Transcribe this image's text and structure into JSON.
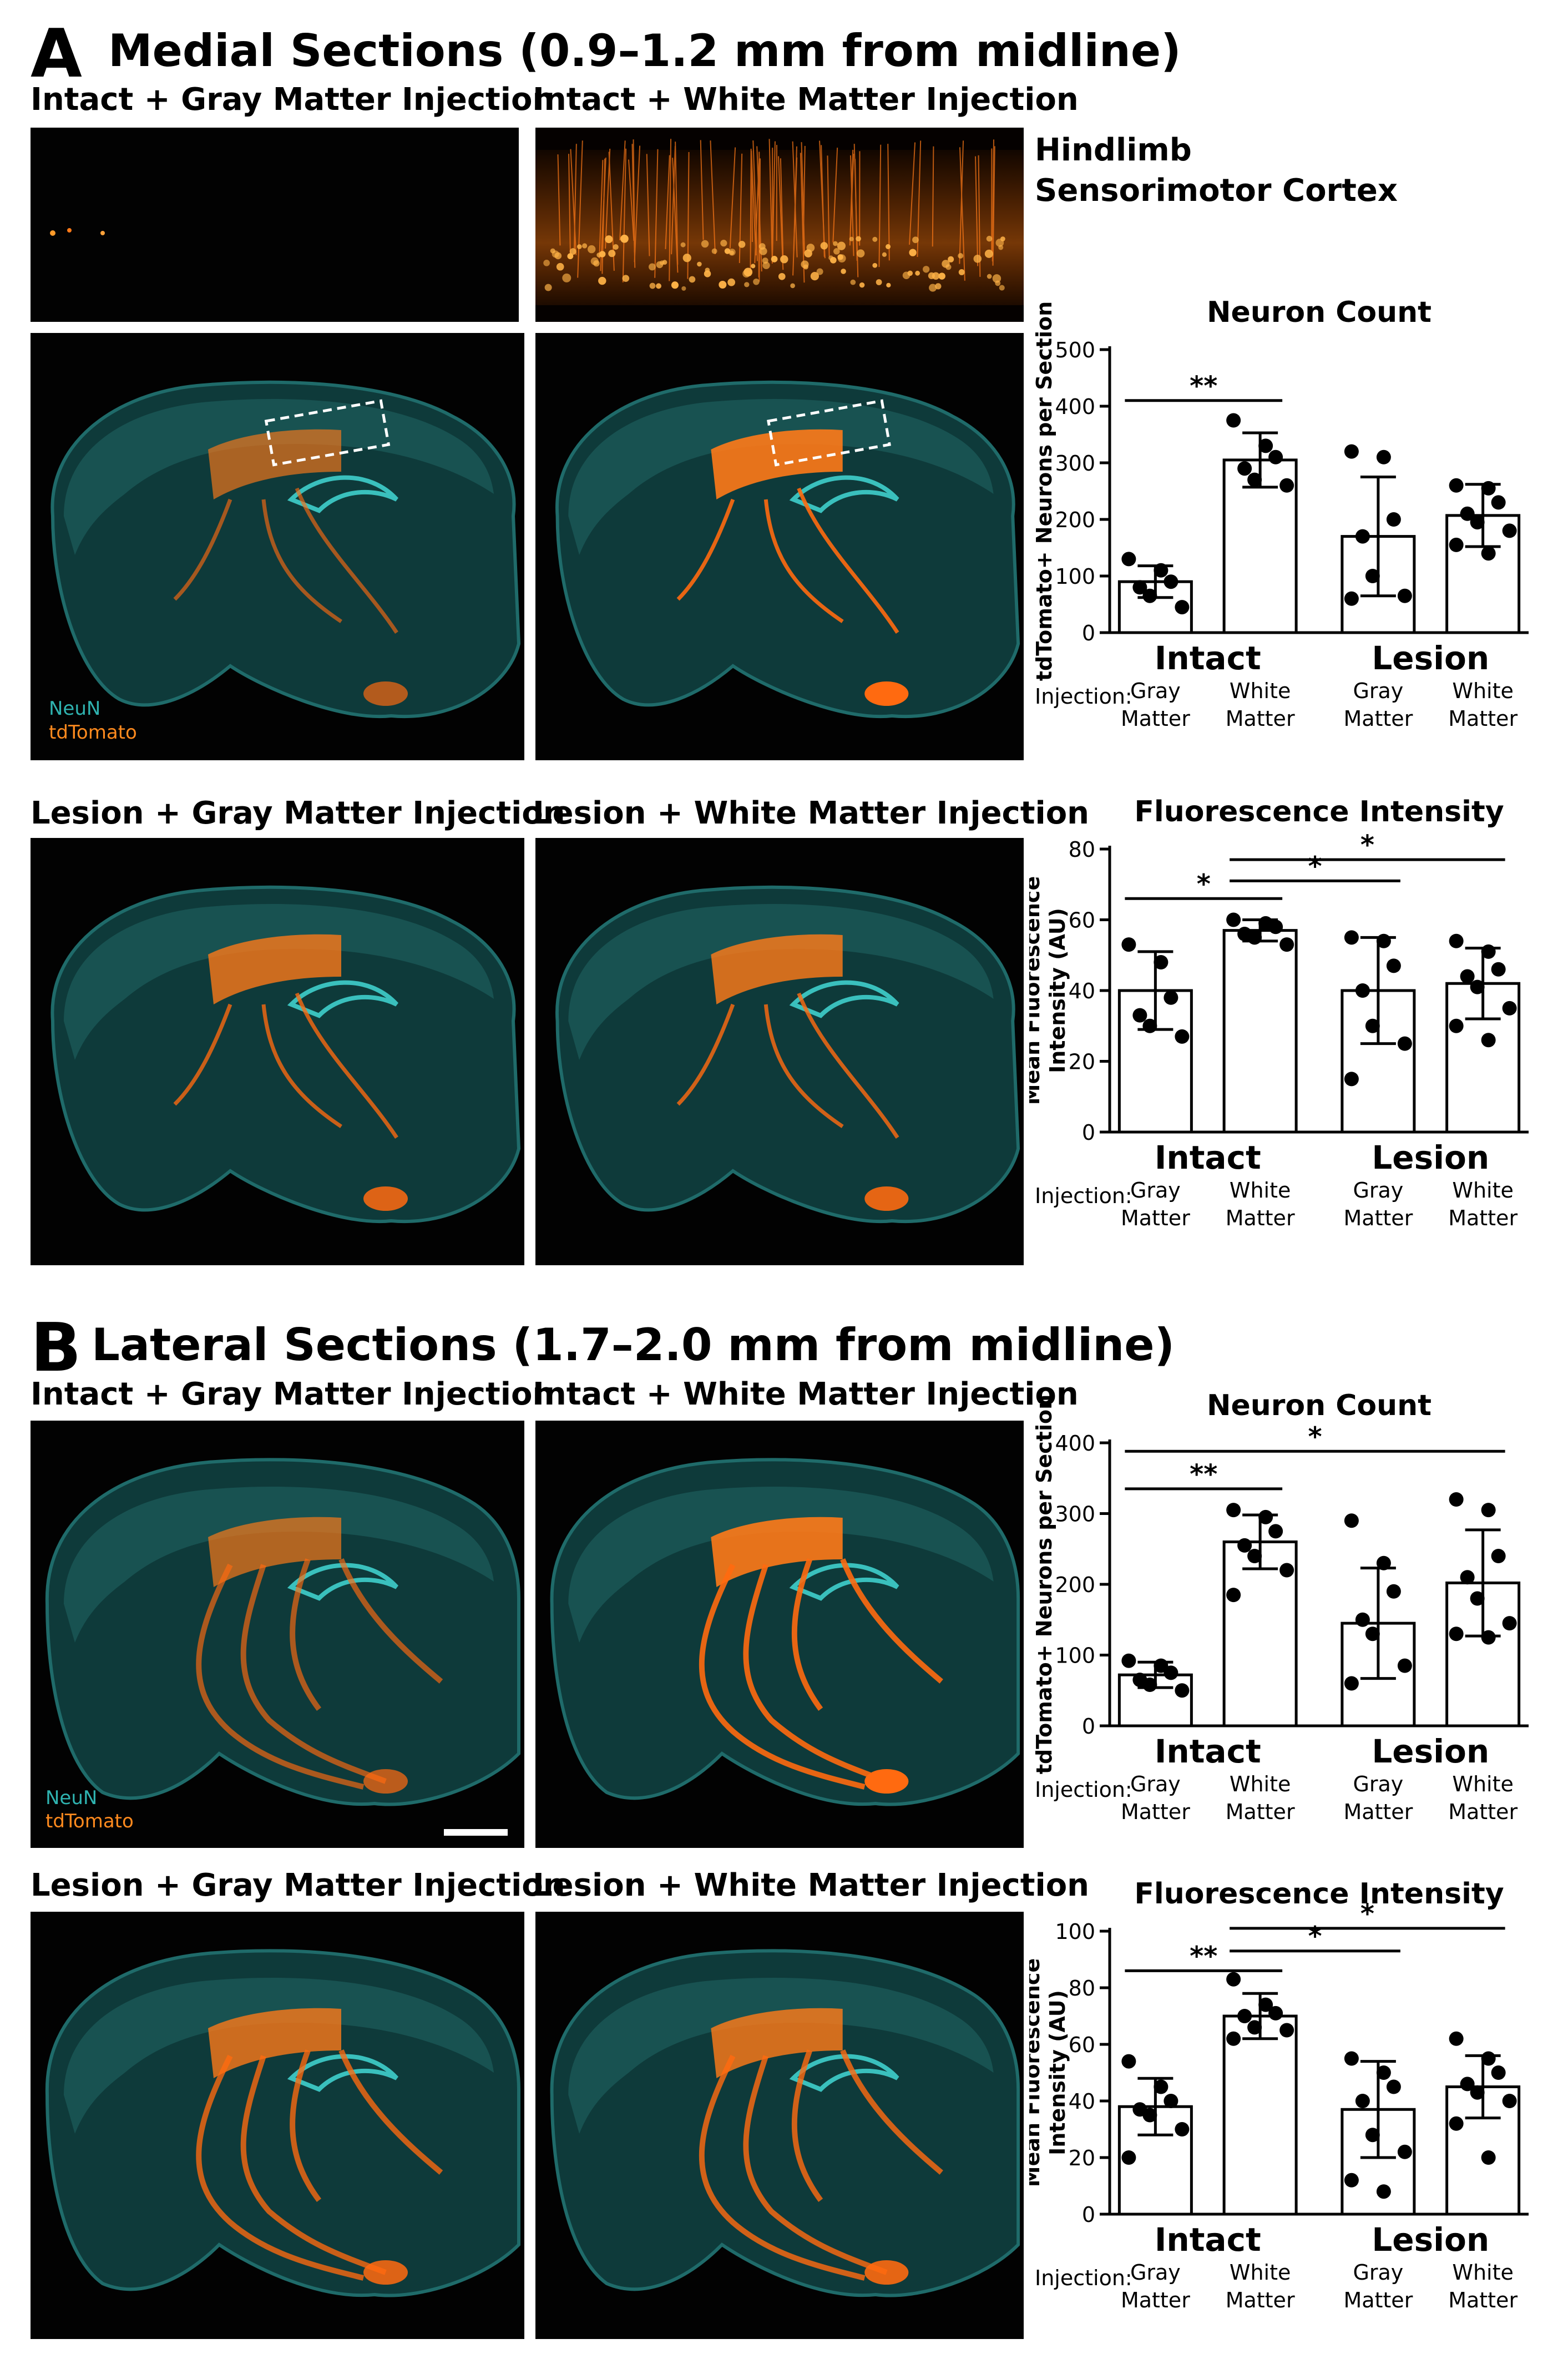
{
  "panel_a": {
    "letter": "A",
    "title": "Medial Sections (0.9–1.2 mm from midline)",
    "image_labels": {
      "intact_gray": "Intact + Gray Matter Injection",
      "intact_white": "Intact + White Matter Injection",
      "lesion_gray": "Lesion + Gray Matter Injection",
      "lesion_white": "Lesion + White Matter Injection"
    },
    "inset_label_line1": "Hindlimb",
    "inset_label_line2": "Sensorimotor Cortex",
    "stain_neun": "NeuN",
    "stain_tdtomato": "tdTomato"
  },
  "panel_b": {
    "letter": "B",
    "title": "Lateral Sections (1.7–2.0 mm from midline)",
    "image_labels": {
      "intact_gray": "Intact + Gray Matter Injection",
      "intact_white": "Intact + White Matter Injection",
      "lesion_gray": "Lesion + Gray Matter Injection",
      "lesion_white": "Lesion + White Matter Injection"
    },
    "stain_neun": "NeuN",
    "stain_tdtomato": "tdTomato"
  },
  "colors": {
    "neun": "#2fb3b0",
    "tdtomato": "#ff8a1e",
    "background": "#020202"
  },
  "chart_data": [
    {
      "id": "a-neuron-count",
      "type": "bar",
      "title": "Neuron Count",
      "ylabel": "tdTomato+ Neurons per Section",
      "ylim": [
        0,
        500
      ],
      "yticks": [
        0,
        100,
        200,
        300,
        400,
        500
      ],
      "groups": [
        "Intact",
        "Lesion"
      ],
      "injection_label": "Injection:",
      "categories": [
        "Gray Matter",
        "White Matter",
        "Gray Matter",
        "White Matter"
      ],
      "values": [
        90,
        305,
        170,
        207
      ],
      "sd": [
        28,
        48,
        105,
        55
      ],
      "points": [
        [
          130,
          110,
          90,
          80,
          65,
          45
        ],
        [
          375,
          330,
          310,
          290,
          270,
          260
        ],
        [
          320,
          310,
          200,
          170,
          100,
          65,
          60
        ],
        [
          260,
          255,
          230,
          210,
          195,
          180,
          155,
          140
        ]
      ],
      "significance": [
        {
          "from": 0,
          "to": 1,
          "label": "**",
          "y": 410
        }
      ]
    },
    {
      "id": "a-fluorescence",
      "type": "bar",
      "title": "Fluorescence Intensity",
      "ylabel": "Mean Fluorescence Intensity (AU)",
      "ylim": [
        0,
        80
      ],
      "yticks": [
        0,
        20,
        40,
        60,
        80
      ],
      "groups": [
        "Intact",
        "Lesion"
      ],
      "injection_label": "Injection:",
      "categories": [
        "Gray Matter",
        "White Matter",
        "Gray Matter",
        "White Matter"
      ],
      "values": [
        40,
        57,
        40,
        42
      ],
      "sd": [
        11,
        3,
        15,
        10
      ],
      "points": [
        [
          53,
          48,
          38,
          33,
          30,
          27
        ],
        [
          60,
          59,
          58,
          56,
          55,
          53
        ],
        [
          55,
          54,
          47,
          40,
          30,
          25,
          15
        ],
        [
          54,
          51,
          46,
          44,
          41,
          35,
          30,
          26
        ]
      ],
      "significance": [
        {
          "from": 0,
          "to": 1,
          "label": "*",
          "y": 66
        },
        {
          "from": 1,
          "to": 2,
          "label": "*",
          "y": 71
        },
        {
          "from": 1,
          "to": 3,
          "label": "*",
          "y": 77
        }
      ]
    },
    {
      "id": "b-neuron-count",
      "type": "bar",
      "title": "Neuron Count",
      "ylabel": "tdTomato+ Neurons per Section",
      "ylim": [
        0,
        400
      ],
      "yticks": [
        0,
        100,
        200,
        300,
        400
      ],
      "groups": [
        "Intact",
        "Lesion"
      ],
      "injection_label": "Injection:",
      "categories": [
        "Gray Matter",
        "White Matter",
        "Gray Matter",
        "White Matter"
      ],
      "values": [
        72,
        260,
        145,
        202
      ],
      "sd": [
        18,
        38,
        78,
        75
      ],
      "points": [
        [
          92,
          85,
          75,
          65,
          58,
          50
        ],
        [
          305,
          295,
          275,
          255,
          240,
          220,
          185
        ],
        [
          290,
          230,
          190,
          150,
          130,
          85,
          60
        ],
        [
          320,
          305,
          240,
          210,
          180,
          145,
          130,
          125
        ]
      ],
      "significance": [
        {
          "from": 0,
          "to": 1,
          "label": "**",
          "y": 335
        },
        {
          "from": 0,
          "to": 3,
          "label": "*",
          "y": 388
        }
      ]
    },
    {
      "id": "b-fluorescence",
      "type": "bar",
      "title": "Fluorescence Intensity",
      "ylabel": "Mean Fluorescence Intensity (AU)",
      "ylim": [
        0,
        100
      ],
      "yticks": [
        0,
        20,
        40,
        60,
        80,
        100
      ],
      "groups": [
        "Intact",
        "Lesion"
      ],
      "injection_label": "Injection:",
      "categories": [
        "Gray Matter",
        "White Matter",
        "Gray Matter",
        "White Matter"
      ],
      "values": [
        38,
        70,
        37,
        45
      ],
      "sd": [
        10,
        8,
        17,
        11
      ],
      "points": [
        [
          54,
          45,
          40,
          37,
          35,
          30,
          20
        ],
        [
          83,
          74,
          71,
          70,
          66,
          65,
          62
        ],
        [
          55,
          50,
          45,
          40,
          28,
          22,
          12,
          8
        ],
        [
          62,
          55,
          50,
          46,
          43,
          40,
          32,
          20
        ]
      ],
      "significance": [
        {
          "from": 0,
          "to": 1,
          "label": "**",
          "y": 86
        },
        {
          "from": 1,
          "to": 2,
          "label": "*",
          "y": 93
        },
        {
          "from": 1,
          "to": 3,
          "label": "*",
          "y": 101
        }
      ]
    }
  ]
}
